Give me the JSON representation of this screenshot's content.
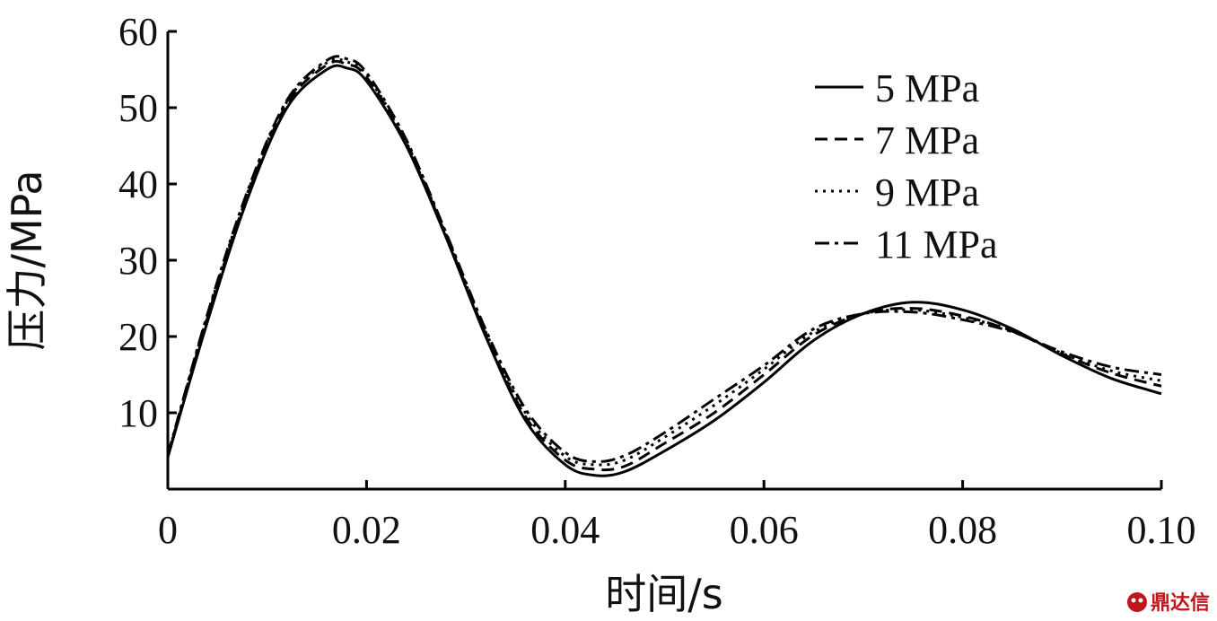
{
  "chart_data": {
    "type": "line",
    "xlabel": "时间/s",
    "ylabel": "压力/MPa",
    "xlim": [
      0,
      0.1
    ],
    "ylim": [
      0,
      60
    ],
    "x_ticks": [
      0,
      0.02,
      0.04,
      0.06,
      0.08,
      0.1
    ],
    "x_tick_labels": [
      "0",
      "0.02",
      "0.04",
      "0.06",
      "0.08",
      "0.10"
    ],
    "y_ticks": [
      10,
      20,
      30,
      40,
      50,
      60
    ],
    "y_tick_labels": [
      "10",
      "20",
      "30",
      "40",
      "50",
      "60"
    ],
    "grid": false,
    "legend_position": "top-right",
    "x": [
      0,
      0.004,
      0.008,
      0.012,
      0.016,
      0.018,
      0.02,
      0.024,
      0.028,
      0.032,
      0.036,
      0.04,
      0.043,
      0.046,
      0.05,
      0.055,
      0.06,
      0.065,
      0.07,
      0.075,
      0.08,
      0.085,
      0.09,
      0.095,
      0.1
    ],
    "series": [
      {
        "name": "5 MPa",
        "style": "solid",
        "values": [
          4.2,
          22,
          38,
          50,
          55,
          55.2,
          53.5,
          45,
          33,
          20,
          9,
          3.2,
          1.8,
          2.3,
          5,
          9,
          14,
          19.5,
          23,
          24.5,
          23.5,
          21,
          17.5,
          14.5,
          12.5
        ]
      },
      {
        "name": "7 MPa",
        "style": "dashed",
        "values": [
          4.3,
          22.5,
          38.5,
          50.5,
          55.6,
          55.7,
          54,
          45.3,
          33.2,
          20.3,
          9.5,
          3.8,
          2.6,
          3,
          6,
          10,
          15,
          20.2,
          23,
          23.7,
          22.7,
          20.7,
          17.7,
          15.2,
          13.5
        ]
      },
      {
        "name": "9 MPa",
        "style": "dotted",
        "values": [
          4.4,
          22.8,
          38.8,
          50.8,
          55.9,
          56,
          54.3,
          45.5,
          33.4,
          20.6,
          10,
          4.3,
          3.2,
          3.8,
          6.8,
          11,
          15.7,
          20.6,
          23,
          23.5,
          22.5,
          20.8,
          17.8,
          15.5,
          14.2
        ]
      },
      {
        "name": "11 MPa",
        "style": "dashdot",
        "values": [
          4.5,
          23,
          39,
          51,
          56.2,
          56.4,
          54.6,
          45.8,
          33.6,
          20.9,
          10.5,
          4.8,
          3.6,
          4.4,
          7.4,
          11.8,
          16.2,
          21,
          23,
          23.2,
          22.2,
          20.6,
          18,
          16,
          15
        ]
      }
    ]
  },
  "watermark": {
    "text": "鼎达信",
    "color": "#c0161b"
  }
}
